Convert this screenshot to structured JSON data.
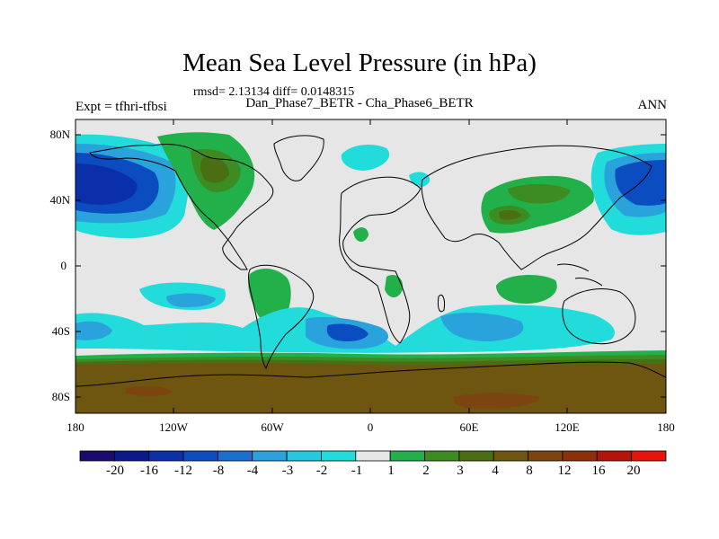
{
  "title": "Mean Sea Level Pressure (in hPa)",
  "stats": "rmsd= 2.13134 diff= 0.0148315",
  "subtitle": "Dan_Phase7_BETR - Cha_Phase6_BETR",
  "experiment": "Expt = tfhri-tfbsi",
  "season": "ANN",
  "lat_labels": [
    "80N",
    "40N",
    "0",
    "40S",
    "80S"
  ],
  "lon_labels": [
    "180",
    "120W",
    "60W",
    "0",
    "60E",
    "120E",
    "180"
  ],
  "colorbar": {
    "colors": [
      "#1c0a6e",
      "#0a1a8c",
      "#0a2fa8",
      "#0b4cc0",
      "#1a6fd0",
      "#2aa2dc",
      "#25c8de",
      "#22dcdc",
      "#e6e6e6",
      "#22b04a",
      "#3c8c22",
      "#4a6e14",
      "#6e5510",
      "#7c4410",
      "#8c300c",
      "#b4140a",
      "#e6140a"
    ],
    "labels": [
      "-20",
      "-16",
      "-12",
      "-8",
      "-4",
      "-3",
      "-2",
      "-1",
      "1",
      "2",
      "3",
      "4",
      "8",
      "12",
      "16",
      "20"
    ]
  }
}
